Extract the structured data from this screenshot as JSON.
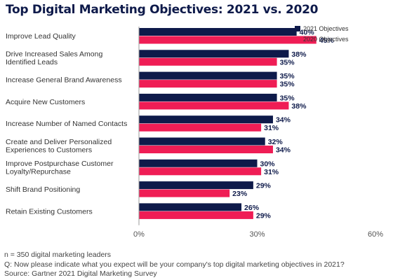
{
  "title": "Top Digital Marketing Objectives: 2021 vs. 2020",
  "colors": {
    "series_2021": "#0e1a4a",
    "series_2020": "#ef1d55",
    "axis": "#9a9a9a",
    "tick_text": "#333333"
  },
  "chart_data": {
    "type": "bar",
    "orientation": "horizontal",
    "title": "Top Digital Marketing Objectives: 2021 vs. 2020",
    "categories": [
      [
        "Improve Lead Quality"
      ],
      [
        "Drive Increased Sales Among",
        "Identified Leads"
      ],
      [
        "Increase General Brand Awareness"
      ],
      [
        "Acquire New Customers"
      ],
      [
        "Increase Number of Named Contacts"
      ],
      [
        "Create and Deliver Personalized",
        "Experiences to Customers"
      ],
      [
        "Improve Postpurchase Customer",
        "Loyalty/Repurchase"
      ],
      [
        "Shift Brand Positioning"
      ],
      [
        "Retain Existing Customers"
      ]
    ],
    "series": [
      {
        "name": "2021 Objectives",
        "color": "#0e1a4a",
        "values": [
          40,
          38,
          35,
          35,
          34,
          32,
          30,
          29,
          26
        ]
      },
      {
        "name": "2020 Objectives",
        "color": "#ef1d55",
        "values": [
          45,
          35,
          35,
          38,
          31,
          34,
          31,
          23,
          29
        ]
      }
    ],
    "xlim": [
      0,
      60
    ],
    "xticks": [
      0,
      30,
      60
    ],
    "xtick_labels": [
      "0%",
      "30%",
      "60%"
    ],
    "value_suffix": "%",
    "legend_position": "top-right",
    "grid": false
  },
  "footer": {
    "note": "n = 350 digital marketing leaders",
    "question": "Q: Now please indicate what you expect will be your company's top digital marketing objectives in 2021?",
    "source": "Source: Gartner 2021 Digital Marketing Survey"
  }
}
